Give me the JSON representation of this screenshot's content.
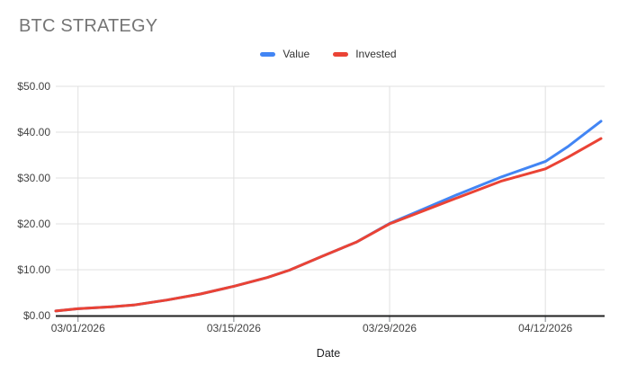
{
  "title": "BTC STRATEGY",
  "legend": [
    {
      "label": "Value",
      "color": "#4285f4"
    },
    {
      "label": "Invested",
      "color": "#ea4335"
    }
  ],
  "colors": {
    "value_line": "#4285f4",
    "invested_line": "#ea4335",
    "title_text": "#757575",
    "gridline": "#e0e0e0",
    "axis_line": "#212121",
    "tick_mark": "#80868b",
    "axis_label": "#424242"
  },
  "chart_data": {
    "type": "line",
    "title": "BTC STRATEGY",
    "xlabel": "Date",
    "ylabel": "",
    "ylim": [
      0,
      50
    ],
    "grid": true,
    "legend_position": "top",
    "yticks": {
      "values": [
        0,
        10,
        20,
        30,
        40,
        50
      ],
      "labels": [
        "$0.00",
        "$10.00",
        "$20.00",
        "$30.00",
        "$40.00",
        "$50.00"
      ]
    },
    "xticks": {
      "day_offsets": [
        2,
        16,
        30,
        44
      ],
      "labels": [
        "03/01/2026",
        "03/15/2026",
        "03/29/2026",
        "04/12/2026"
      ]
    },
    "x_range_days": [
      0,
      49
    ],
    "x": [
      "02/27/2026",
      "03/01/2026",
      "03/04/2026",
      "03/06/2026",
      "03/09/2026",
      "03/12/2026",
      "03/15/2026",
      "03/18/2026",
      "03/20/2026",
      "03/23/2026",
      "03/26/2026",
      "03/29/2026",
      "04/01/2026",
      "04/04/2026",
      "04/08/2026",
      "04/12/2026",
      "04/14/2026",
      "04/17/2026"
    ],
    "day_offsets": [
      0,
      2,
      5,
      7,
      10,
      13,
      16,
      19,
      21,
      24,
      27,
      30,
      33,
      36,
      40,
      44,
      46,
      49
    ],
    "series": [
      {
        "name": "Value",
        "color": "#4285f4",
        "values": [
          1.0,
          1.5,
          1.9,
          2.3,
          3.4,
          4.7,
          6.4,
          8.3,
          9.9,
          13.0,
          16.0,
          20.1,
          23.2,
          26.3,
          30.2,
          33.6,
          36.8,
          42.4
        ]
      },
      {
        "name": "Invested",
        "color": "#ea4335",
        "values": [
          1.0,
          1.5,
          1.9,
          2.3,
          3.4,
          4.7,
          6.4,
          8.3,
          9.9,
          13.0,
          16.0,
          20.0,
          22.8,
          25.6,
          29.3,
          32.0,
          34.5,
          38.6
        ]
      }
    ]
  }
}
